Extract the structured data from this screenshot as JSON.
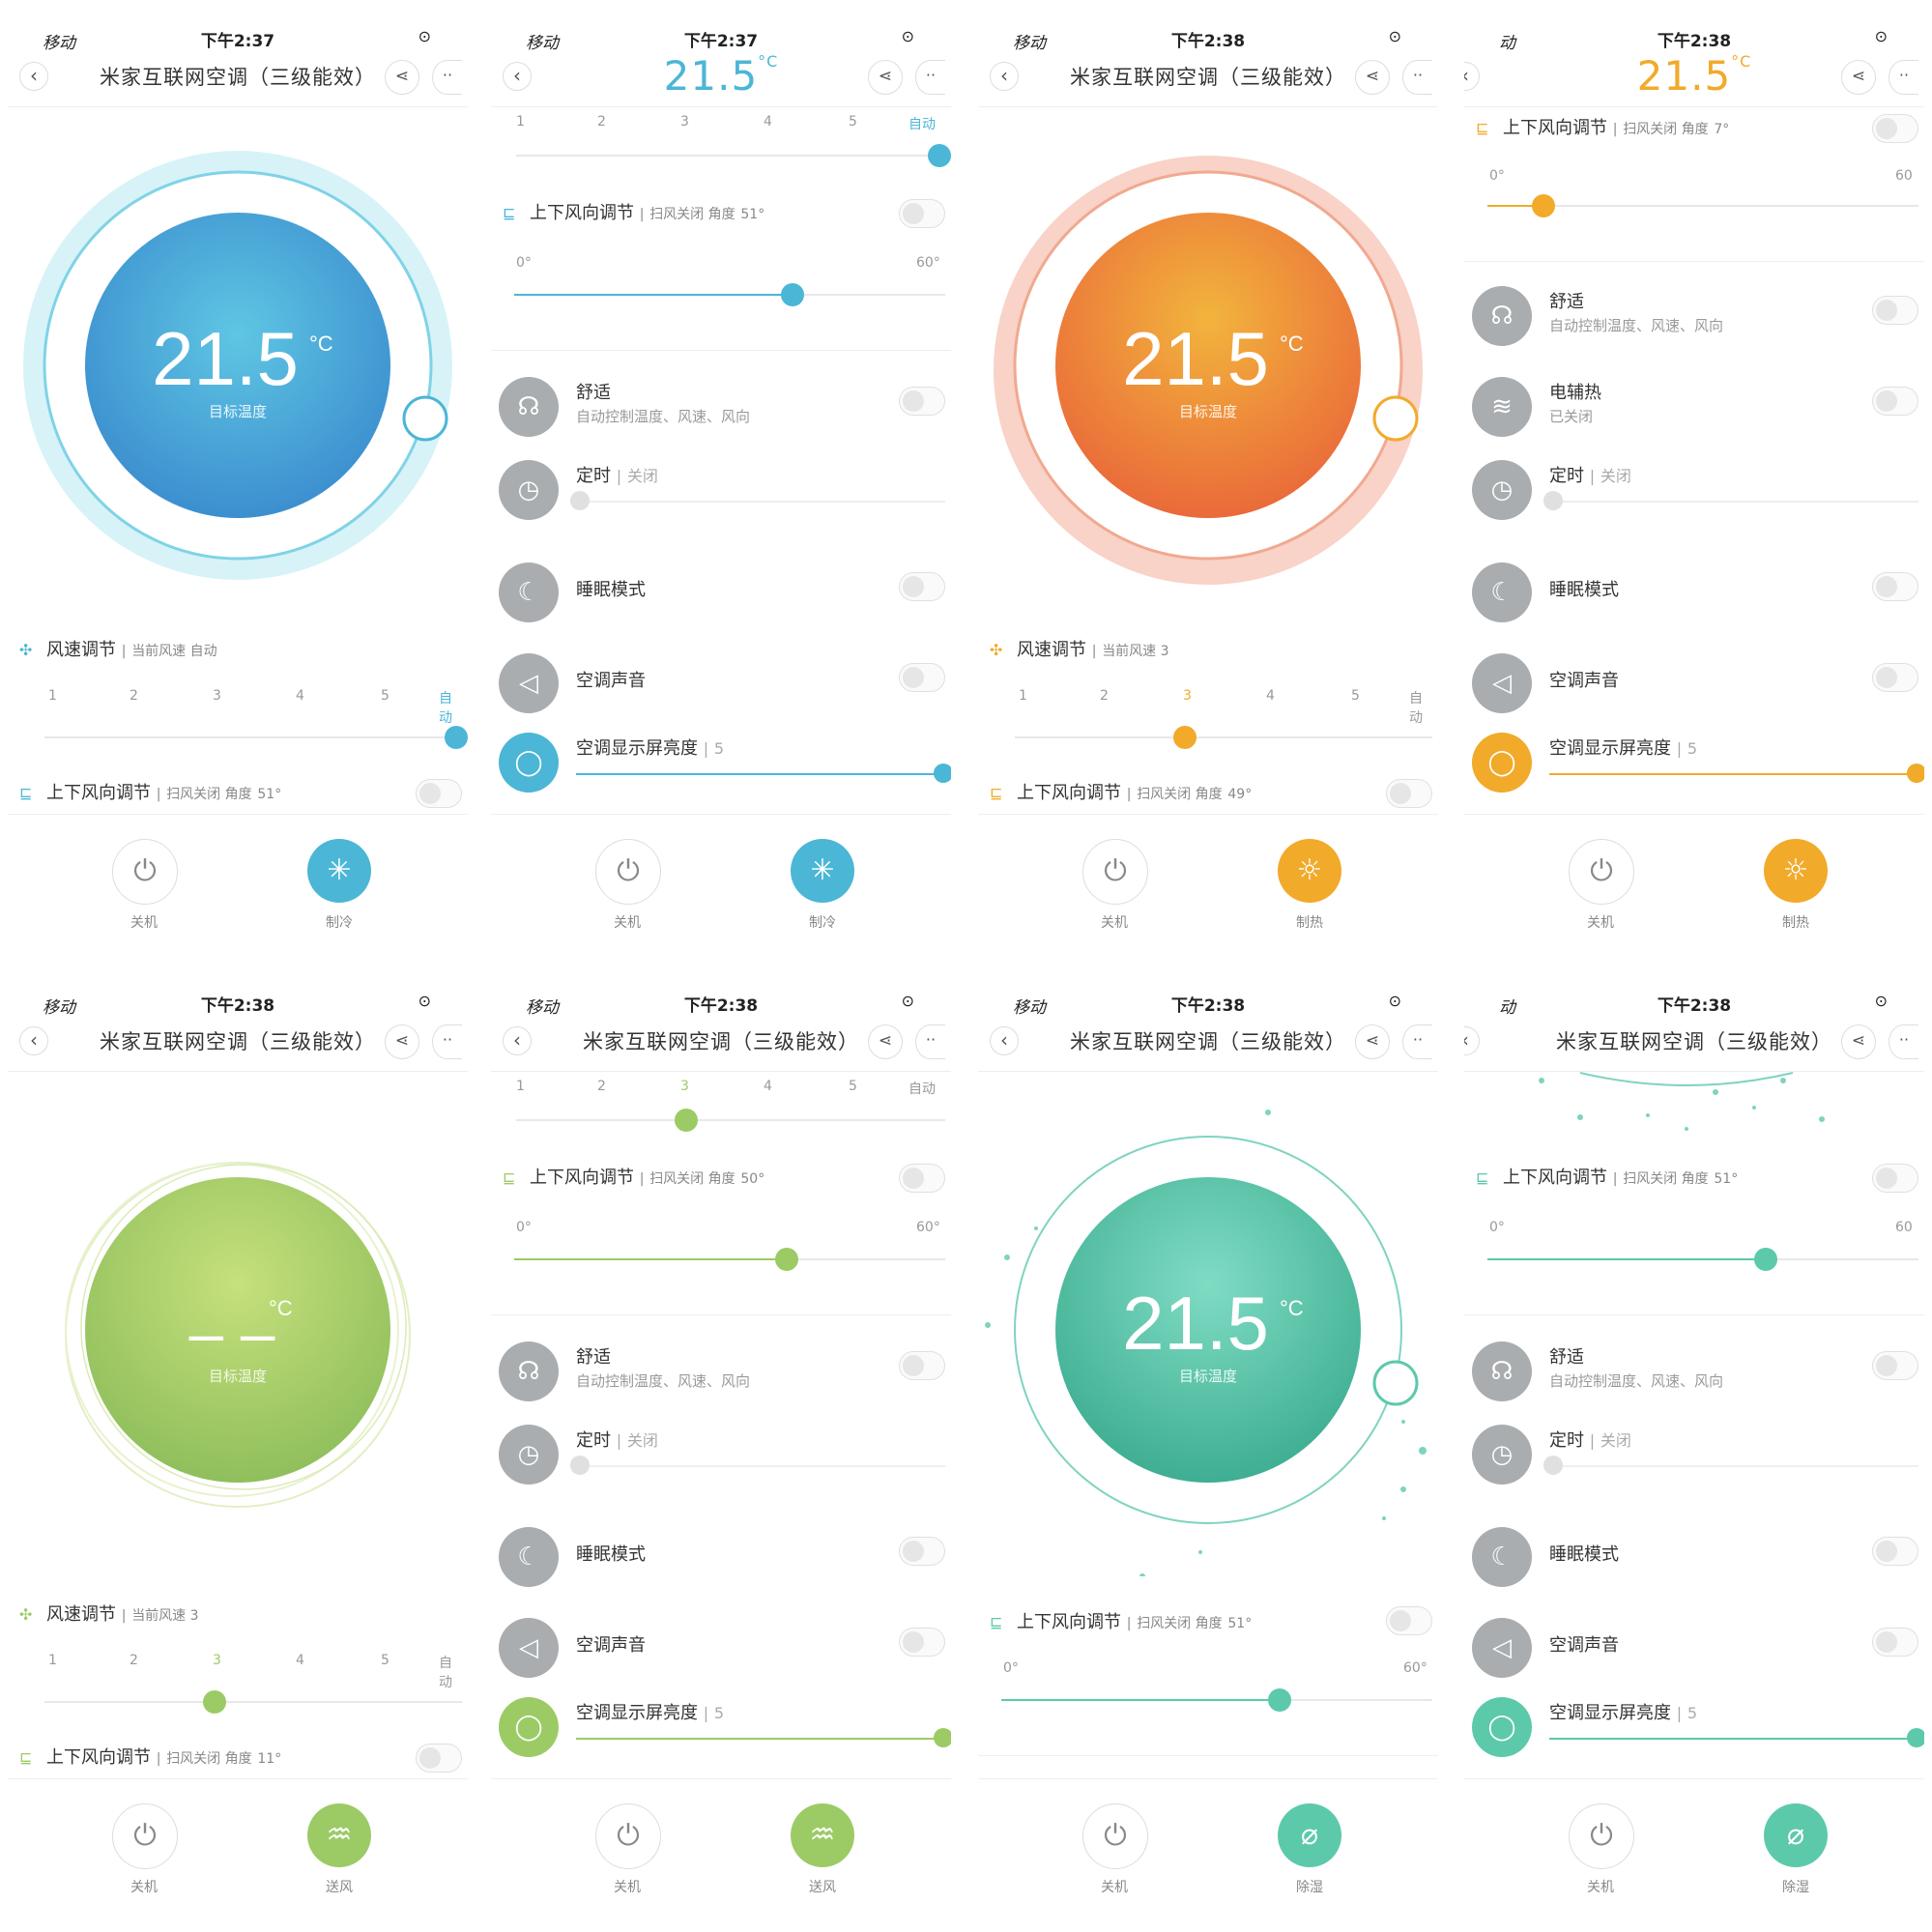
{
  "common": {
    "title": "米家互联网空调（三级能效）",
    "temp_value": "21.5",
    "temp_unit": "°C",
    "temp_label": "目标温度",
    "temp_dashes": "– –",
    "back_glyph": "‹",
    "share_glyph": "⋖",
    "more_glyph": "··",
    "status_left": "移动",
    "status_left_alt": "动",
    "power_label": "关机",
    "wind_label": "风速调节",
    "vent_label": "上下风向调节",
    "vent_sub_prefix": "扫风关闭 角度",
    "scale": [
      "1",
      "2",
      "3",
      "4",
      "5",
      "自动"
    ],
    "range_min": "0°",
    "range_max": "60°",
    "range_max_short": "60",
    "comfort": "舒适",
    "comfort_sub": "自动控制温度、风速、风向",
    "timer": "定时",
    "timer_sub": "关闭",
    "sleep": "睡眠模式",
    "sound": "空调声音",
    "display": "空调显示屏亮度",
    "display_sub": "5",
    "heater": "电辅热",
    "heater_sub": "已关闭",
    "sep": "|"
  },
  "colors": {
    "cool": "#4bb6d6",
    "heat": "#ee7a3a",
    "heat_accent": "#f1aa2a",
    "fan": "#9ccb65",
    "dry": "#5cc9ab",
    "grey": "#a9adb0"
  },
  "panels": [
    {
      "time": "下午2:37",
      "mode_label": "制冷",
      "wind_sub": "当前风速 自动",
      "vent_angle": "51°"
    },
    {
      "time": "下午2:37",
      "mode_label": "制冷",
      "vent_angle": "51°"
    },
    {
      "time": "下午2:38",
      "mode_label": "制热",
      "wind_sub": "当前风速 3",
      "vent_angle": "49°"
    },
    {
      "time": "下午2:38",
      "mode_label": "制热",
      "vent_angle": "7°"
    },
    {
      "time": "下午2:38",
      "mode_label": "送风",
      "wind_sub": "当前风速 3",
      "vent_angle": "11°"
    },
    {
      "time": "下午2:38",
      "mode_label": "送风",
      "vent_angle": "50°"
    },
    {
      "time": "下午2:38",
      "mode_label": "除湿",
      "vent_angle": "51°"
    },
    {
      "time": "下午2:38",
      "mode_label": "除湿",
      "vent_angle": "51°"
    }
  ]
}
